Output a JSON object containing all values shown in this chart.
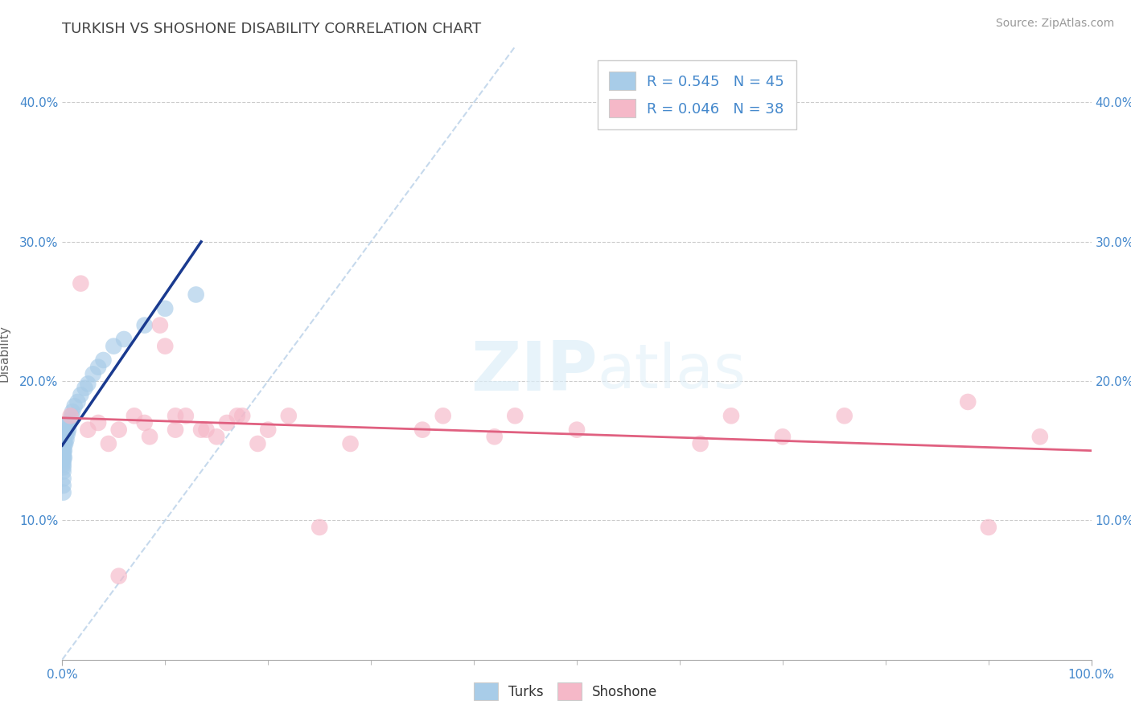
{
  "title": "TURKISH VS SHOSHONE DISABILITY CORRELATION CHART",
  "source": "Source: ZipAtlas.com",
  "ylabel": "Disability",
  "turks_R": 0.545,
  "turks_N": 45,
  "shoshone_R": 0.046,
  "shoshone_N": 38,
  "turks_color": "#a8cce8",
  "shoshone_color": "#f5b8c8",
  "turks_line_color": "#1a3a8f",
  "shoshone_line_color": "#e06080",
  "diag_line_color": "#b8d0e8",
  "background_color": "#ffffff",
  "grid_color": "#cccccc",
  "xlim": [
    0,
    1.0
  ],
  "ylim": [
    0,
    0.44
  ],
  "yticks": [
    0.1,
    0.2,
    0.3,
    0.4
  ],
  "yticklabels": [
    "10.0%",
    "20.0%",
    "30.0%",
    "40.0%"
  ],
  "tick_color": "#4488cc",
  "title_fontsize": 13,
  "axis_label_fontsize": 11,
  "tick_fontsize": 11,
  "legend_fontsize": 13,
  "source_fontsize": 10,
  "turks_data_x": [
    0.001,
    0.001,
    0.001,
    0.001,
    0.001,
    0.001,
    0.001,
    0.001,
    0.001,
    0.001,
    0.001,
    0.001,
    0.001,
    0.001,
    0.001,
    0.002,
    0.002,
    0.002,
    0.002,
    0.002,
    0.002,
    0.003,
    0.003,
    0.004,
    0.004,
    0.005,
    0.005,
    0.006,
    0.007,
    0.008,
    0.009,
    0.01,
    0.012,
    0.015,
    0.018,
    0.022,
    0.025,
    0.03,
    0.035,
    0.04,
    0.05,
    0.06,
    0.08,
    0.1,
    0.13
  ],
  "turks_data_y": [
    0.12,
    0.125,
    0.13,
    0.135,
    0.138,
    0.14,
    0.142,
    0.144,
    0.146,
    0.148,
    0.15,
    0.152,
    0.154,
    0.156,
    0.158,
    0.145,
    0.15,
    0.155,
    0.158,
    0.16,
    0.162,
    0.155,
    0.162,
    0.158,
    0.165,
    0.162,
    0.168,
    0.165,
    0.17,
    0.172,
    0.175,
    0.178,
    0.182,
    0.185,
    0.19,
    0.195,
    0.198,
    0.205,
    0.21,
    0.215,
    0.225,
    0.23,
    0.24,
    0.252,
    0.262
  ],
  "shoshone_data_x": [
    0.008,
    0.018,
    0.025,
    0.035,
    0.045,
    0.055,
    0.07,
    0.085,
    0.095,
    0.1,
    0.11,
    0.12,
    0.14,
    0.15,
    0.16,
    0.17,
    0.19,
    0.2,
    0.22,
    0.28,
    0.37,
    0.42,
    0.44,
    0.5,
    0.62,
    0.65,
    0.7,
    0.76,
    0.88,
    0.9,
    0.95,
    0.055,
    0.08,
    0.11,
    0.135,
    0.175,
    0.25,
    0.35
  ],
  "shoshone_data_y": [
    0.175,
    0.27,
    0.165,
    0.17,
    0.155,
    0.165,
    0.175,
    0.16,
    0.24,
    0.225,
    0.165,
    0.175,
    0.165,
    0.16,
    0.17,
    0.175,
    0.155,
    0.165,
    0.175,
    0.155,
    0.175,
    0.16,
    0.175,
    0.165,
    0.155,
    0.175,
    0.16,
    0.175,
    0.185,
    0.095,
    0.16,
    0.06,
    0.17,
    0.175,
    0.165,
    0.175,
    0.095,
    0.165
  ]
}
